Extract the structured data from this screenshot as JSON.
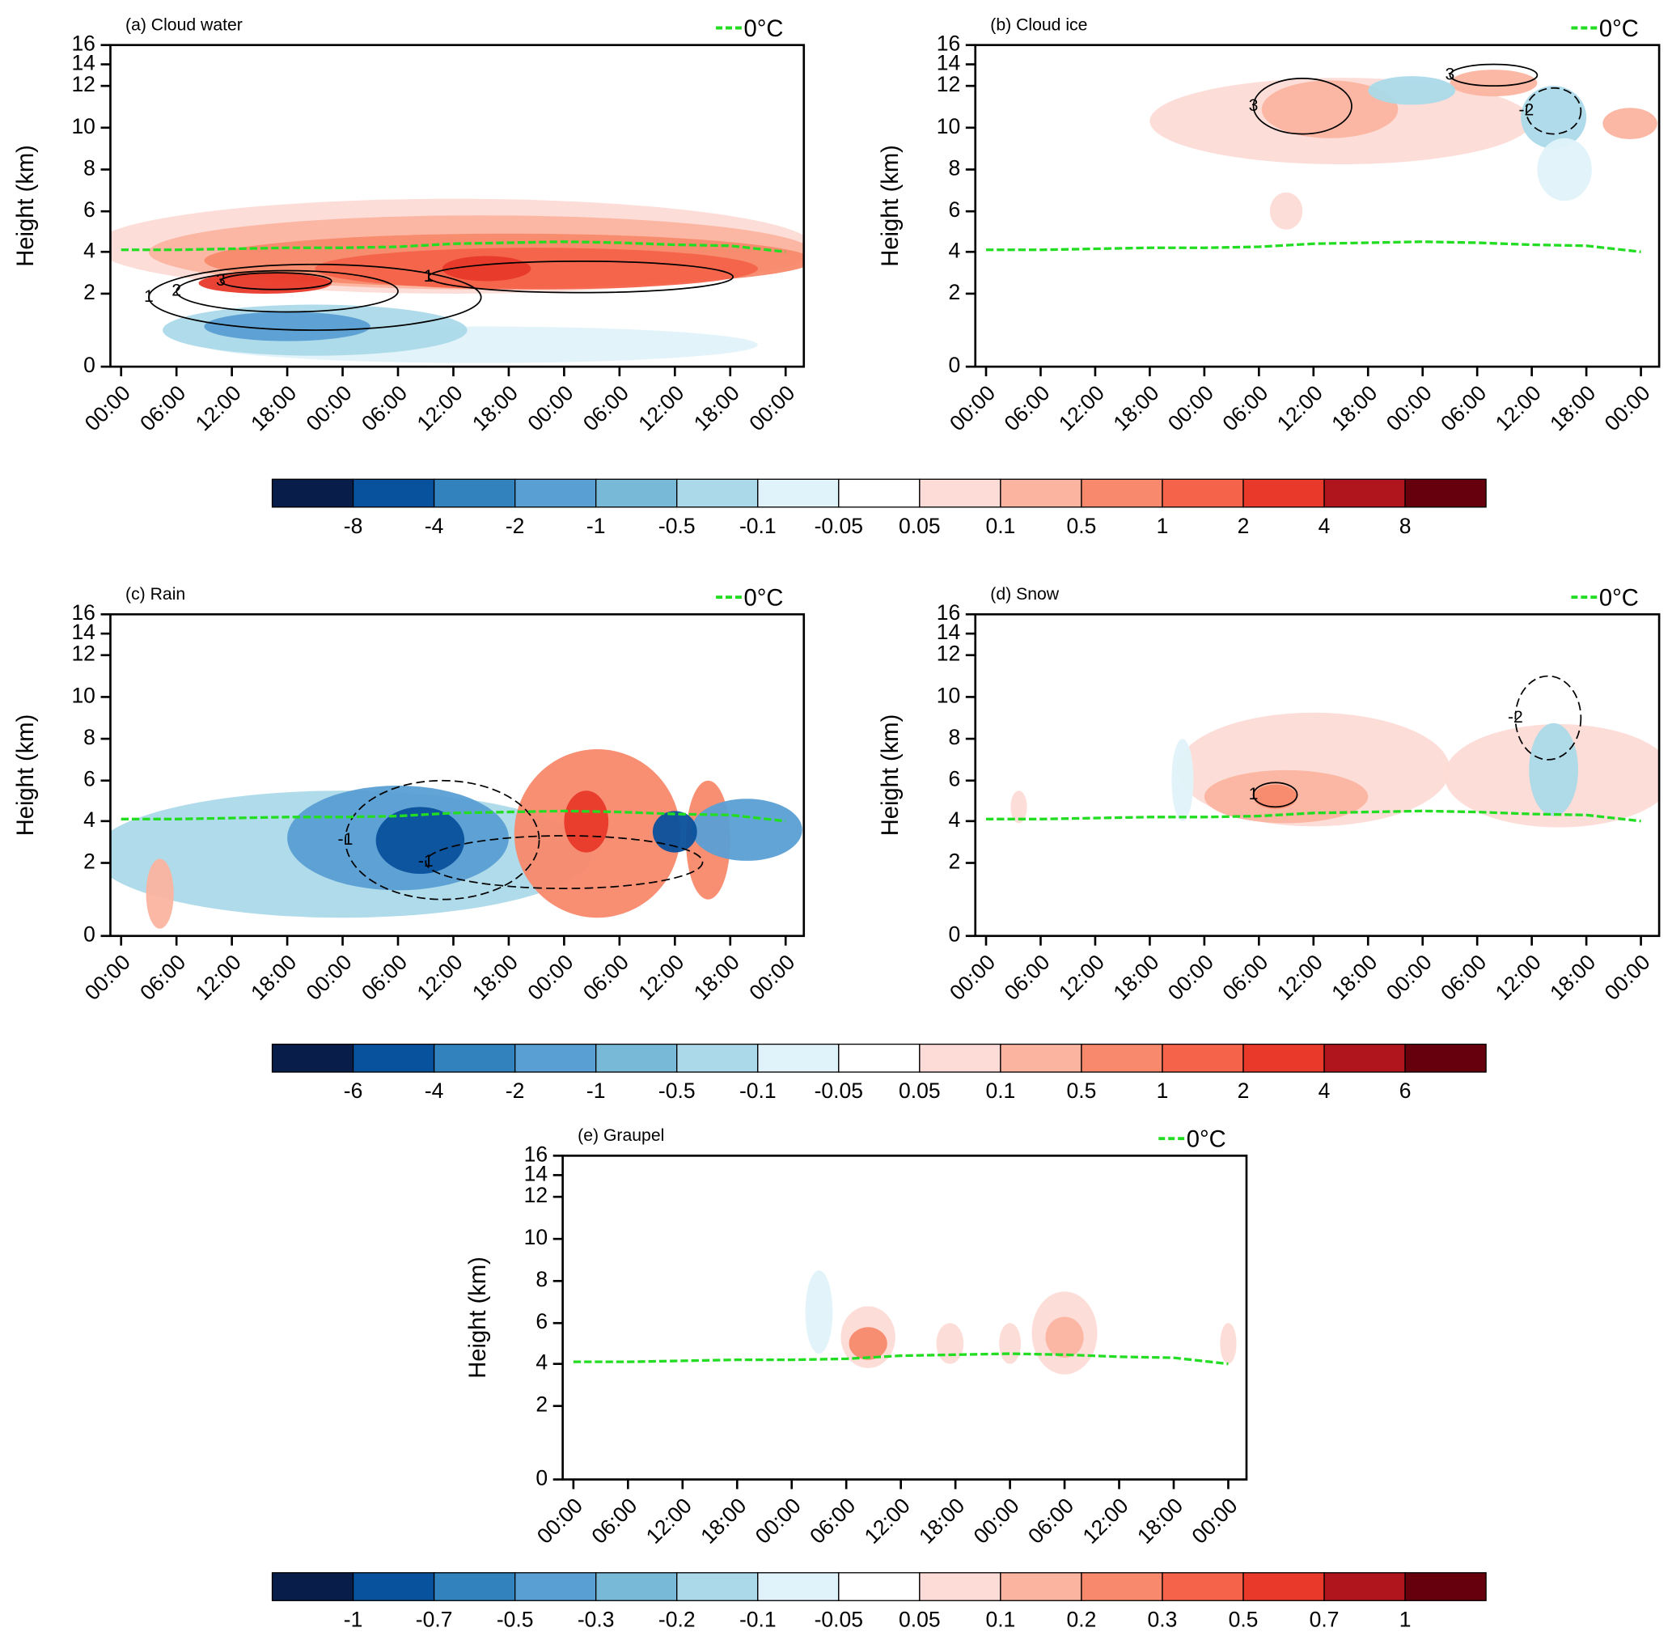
{
  "chart_data": [
    {
      "type": "contour",
      "title": "(a) Cloud water",
      "ylabel": "Height (km)",
      "legend": "0°C",
      "categories": [
        "00:00",
        "06:00",
        "12:00",
        "18:00",
        "00:00",
        "06:00",
        "12:00",
        "18:00",
        "00:00",
        "06:00",
        "12:00",
        "18:00",
        "00:00"
      ],
      "ylim": [
        0,
        16
      ],
      "yticks": [
        0,
        2,
        4,
        6,
        8,
        10,
        12,
        14,
        16
      ],
      "freezing_level": [
        4.1,
        4.1,
        4.15,
        4.2,
        4.2,
        4.25,
        4.4,
        4.45,
        4.5,
        4.45,
        4.35,
        4.3,
        4.0
      ],
      "fills": [
        {
          "value": 0.07,
          "x": 6,
          "y": 4.3,
          "w": 13,
          "h": 4.6
        },
        {
          "value": 0.3,
          "x": 6.5,
          "y": 4,
          "w": 12,
          "h": 3.6
        },
        {
          "value": 0.7,
          "x": 7,
          "y": 3.6,
          "w": 11,
          "h": 2.6
        },
        {
          "value": 1.5,
          "x": 7.5,
          "y": 3.2,
          "w": 8,
          "h": 2
        },
        {
          "value": 3,
          "x": 2.6,
          "y": 2.5,
          "w": 2.4,
          "h": 1
        },
        {
          "value": 3,
          "x": 6.6,
          "y": 3.2,
          "w": 1.6,
          "h": 1.2
        },
        {
          "value": -0.07,
          "x": 6.5,
          "y": 0.6,
          "w": 10,
          "h": 1
        },
        {
          "value": -0.3,
          "x": 3.5,
          "y": 1,
          "w": 5.5,
          "h": 1.4
        },
        {
          "value": -1.5,
          "x": 3,
          "y": 1.1,
          "w": 3,
          "h": 0.8
        }
      ],
      "contours": [
        {
          "label": "1",
          "x": 3.5,
          "y": 2.2,
          "w": 6,
          "h": 2.4,
          "dashed": false
        },
        {
          "label": "2",
          "x": 3,
          "y": 2.3,
          "w": 4,
          "h": 1.6,
          "dashed": false
        },
        {
          "label": "3",
          "x": 2.8,
          "y": 2.6,
          "w": 2,
          "h": 0.8,
          "dashed": false
        },
        {
          "label": "1",
          "x": 8.3,
          "y": 2.8,
          "w": 5.5,
          "h": 1.5,
          "dashed": false
        }
      ]
    },
    {
      "type": "contour",
      "title": "(b) Cloud ice",
      "ylabel": "Height (km)",
      "legend": "0°C",
      "categories": [
        "00:00",
        "06:00",
        "12:00",
        "18:00",
        "00:00",
        "06:00",
        "12:00",
        "18:00",
        "00:00",
        "06:00",
        "12:00",
        "18:00",
        "00:00"
      ],
      "ylim": [
        0,
        16
      ],
      "yticks": [
        0,
        2,
        4,
        6,
        8,
        10,
        12,
        14,
        16
      ],
      "freezing_level": [
        4.1,
        4.1,
        4.15,
        4.2,
        4.2,
        4.25,
        4.4,
        4.45,
        4.5,
        4.45,
        4.35,
        4.3,
        4.0
      ],
      "fills": [
        {
          "value": 0.07,
          "x": 6.5,
          "y": 10.5,
          "w": 7,
          "h": 4.5
        },
        {
          "value": 0.3,
          "x": 6.3,
          "y": 11,
          "w": 2.5,
          "h": 3
        },
        {
          "value": 0.3,
          "x": 9.3,
          "y": 12.5,
          "w": 1.6,
          "h": 2
        },
        {
          "value": 0.07,
          "x": 5.5,
          "y": 6,
          "w": 0.6,
          "h": 1.8
        },
        {
          "value": -0.3,
          "x": 7.8,
          "y": 12,
          "w": 1.6,
          "h": 1.8
        },
        {
          "value": -0.3,
          "x": 10.4,
          "y": 10.5,
          "w": 1.2,
          "h": 3
        },
        {
          "value": -0.07,
          "x": 10.6,
          "y": 8,
          "w": 1,
          "h": 3
        },
        {
          "value": 0.3,
          "x": 11.8,
          "y": 10.2,
          "w": 1,
          "h": 1.5
        }
      ],
      "contours": [
        {
          "label": "3",
          "x": 5.8,
          "y": 11.2,
          "w": 1.8,
          "h": 3,
          "dashed": false
        },
        {
          "label": "3",
          "x": 9.3,
          "y": 13,
          "w": 1.6,
          "h": 2,
          "dashed": false
        },
        {
          "label": "-2",
          "x": 10.4,
          "y": 10.8,
          "w": 1,
          "h": 2.2,
          "dashed": true
        }
      ]
    },
    {
      "type": "contour",
      "title": "(c) Rain",
      "ylabel": "Height (km)",
      "legend": "0°C",
      "categories": [
        "00:00",
        "06:00",
        "12:00",
        "18:00",
        "00:00",
        "06:00",
        "12:00",
        "18:00",
        "00:00",
        "06:00",
        "12:00",
        "18:00",
        "00:00"
      ],
      "ylim": [
        0,
        16
      ],
      "yticks": [
        0,
        2,
        4,
        6,
        8,
        10,
        12,
        14,
        16
      ],
      "freezing_level": [
        4.1,
        4.1,
        4.15,
        4.2,
        4.2,
        4.25,
        4.4,
        4.45,
        4.5,
        4.45,
        4.35,
        4.3,
        4.0
      ],
      "fills": [
        {
          "value": -0.3,
          "x": 4,
          "y": 3,
          "w": 9,
          "h": 5
        },
        {
          "value": -1.5,
          "x": 5,
          "y": 3.5,
          "w": 4,
          "h": 4.5
        },
        {
          "value": -5,
          "x": 5.4,
          "y": 3.2,
          "w": 1.6,
          "h": 3
        },
        {
          "value": 0.7,
          "x": 8.6,
          "y": 4,
          "w": 3,
          "h": 7
        },
        {
          "value": 3,
          "x": 8.4,
          "y": 4,
          "w": 0.8,
          "h": 3
        },
        {
          "value": 0.7,
          "x": 10.6,
          "y": 3.5,
          "w": 0.8,
          "h": 5
        },
        {
          "value": -1.5,
          "x": 11.3,
          "y": 3.6,
          "w": 2,
          "h": 3
        },
        {
          "value": -5,
          "x": 10,
          "y": 3.5,
          "w": 0.8,
          "h": 2
        },
        {
          "value": 0.3,
          "x": 0.7,
          "y": 1.2,
          "w": 0.5,
          "h": 2
        }
      ],
      "contours": [
        {
          "label": "-1",
          "x": 5.8,
          "y": 3.5,
          "w": 3.5,
          "h": 5,
          "dashed": true
        },
        {
          "label": "-1",
          "x": 8,
          "y": 2.3,
          "w": 5,
          "h": 2,
          "dashed": true
        }
      ]
    },
    {
      "type": "contour",
      "title": "(d) Snow",
      "ylabel": "Height (km)",
      "legend": "0°C",
      "categories": [
        "00:00",
        "06:00",
        "12:00",
        "18:00",
        "00:00",
        "06:00",
        "12:00",
        "18:00",
        "00:00",
        "06:00",
        "12:00",
        "18:00",
        "00:00"
      ],
      "ylim": [
        0,
        16
      ],
      "yticks": [
        0,
        2,
        4,
        6,
        8,
        10,
        12,
        14,
        16
      ],
      "freezing_level": [
        4.1,
        4.1,
        4.15,
        4.2,
        4.2,
        4.25,
        4.4,
        4.45,
        4.5,
        4.45,
        4.35,
        4.3,
        4.0
      ],
      "fills": [
        {
          "value": 0.07,
          "x": 6,
          "y": 6.5,
          "w": 5,
          "h": 5.5
        },
        {
          "value": 0.3,
          "x": 5.5,
          "y": 5.2,
          "w": 3,
          "h": 2.6
        },
        {
          "value": 0.7,
          "x": 5.3,
          "y": 5.2,
          "w": 0.8,
          "h": 1.2
        },
        {
          "value": 0.07,
          "x": 10.5,
          "y": 6.2,
          "w": 4.2,
          "h": 5
        },
        {
          "value": -0.3,
          "x": 10.4,
          "y": 6.5,
          "w": 0.9,
          "h": 4.5
        },
        {
          "value": -0.07,
          "x": 3.6,
          "y": 6,
          "w": 0.4,
          "h": 4
        },
        {
          "value": 0.07,
          "x": 0.6,
          "y": 4.7,
          "w": 0.3,
          "h": 1.6
        }
      ],
      "contours": [
        {
          "label": "-2",
          "x": 10.3,
          "y": 9,
          "w": 1.2,
          "h": 4,
          "dashed": true
        },
        {
          "label": "1",
          "x": 5.3,
          "y": 5.3,
          "w": 0.8,
          "h": 1.2,
          "dashed": false
        }
      ]
    },
    {
      "type": "contour",
      "title": "(e) Graupel",
      "ylabel": "Height (km)",
      "legend": "0°C",
      "categories": [
        "00:00",
        "06:00",
        "12:00",
        "18:00",
        "00:00",
        "06:00",
        "12:00",
        "18:00",
        "00:00",
        "06:00",
        "12:00",
        "18:00",
        "00:00"
      ],
      "ylim": [
        0,
        16
      ],
      "yticks": [
        0,
        2,
        4,
        6,
        8,
        10,
        12,
        14,
        16
      ],
      "freezing_level": [
        4.1,
        4.1,
        4.15,
        4.2,
        4.2,
        4.25,
        4.4,
        4.45,
        4.5,
        4.45,
        4.35,
        4.3,
        4.0
      ],
      "fills": [
        {
          "value": 0.07,
          "x": 5.4,
          "y": 5.3,
          "w": 1,
          "h": 3
        },
        {
          "value": 0.25,
          "x": 5.4,
          "y": 5,
          "w": 0.7,
          "h": 1.6
        },
        {
          "value": 0.07,
          "x": 9,
          "y": 5.5,
          "w": 1.2,
          "h": 4
        },
        {
          "value": 0.15,
          "x": 9,
          "y": 5.3,
          "w": 0.7,
          "h": 2
        },
        {
          "value": 0.07,
          "x": 6.9,
          "y": 5,
          "w": 0.5,
          "h": 2
        },
        {
          "value": 0.07,
          "x": 8,
          "y": 5,
          "w": 0.4,
          "h": 2
        },
        {
          "value": -0.07,
          "x": 4.5,
          "y": 6.5,
          "w": 0.5,
          "h": 4
        },
        {
          "value": 0.07,
          "x": 12,
          "y": 5,
          "w": 0.3,
          "h": 2
        }
      ],
      "contours": []
    }
  ],
  "colorbars": [
    {
      "colors": [
        "#081d49",
        "#08519c",
        "#3182bd",
        "#5a9fd4",
        "#78b9d8",
        "#abd9e9",
        "#e0f3fa",
        "#ffffff",
        "#fddbd6",
        "#fbb4a0",
        "#f8896c",
        "#f4634a",
        "#e8392a",
        "#b0141c",
        "#67000d"
      ],
      "levels": [
        -8,
        -4,
        -2,
        -1,
        -0.5,
        -0.1,
        -0.05,
        0.05,
        0.1,
        0.5,
        1,
        2,
        4,
        8
      ]
    },
    {
      "colors": [
        "#081d49",
        "#08519c",
        "#3182bd",
        "#5a9fd4",
        "#78b9d8",
        "#abd9e9",
        "#e0f3fa",
        "#ffffff",
        "#fddbd6",
        "#fbb4a0",
        "#f8896c",
        "#f4634a",
        "#e8392a",
        "#b0141c",
        "#67000d"
      ],
      "levels": [
        -6,
        -4,
        -2,
        -1,
        -0.5,
        -0.1,
        -0.05,
        0.05,
        0.1,
        0.5,
        1,
        2,
        4,
        6
      ]
    },
    {
      "colors": [
        "#081d49",
        "#08519c",
        "#3182bd",
        "#5a9fd4",
        "#78b9d8",
        "#abd9e9",
        "#e0f3fa",
        "#ffffff",
        "#fddbd6",
        "#fbb4a0",
        "#f8896c",
        "#f4634a",
        "#e8392a",
        "#b0141c",
        "#67000d"
      ],
      "levels": [
        -1,
        -0.7,
        -0.5,
        -0.3,
        -0.2,
        -0.1,
        -0.05,
        0.05,
        0.1,
        0.2,
        0.3,
        0.5,
        0.7,
        1
      ]
    }
  ]
}
